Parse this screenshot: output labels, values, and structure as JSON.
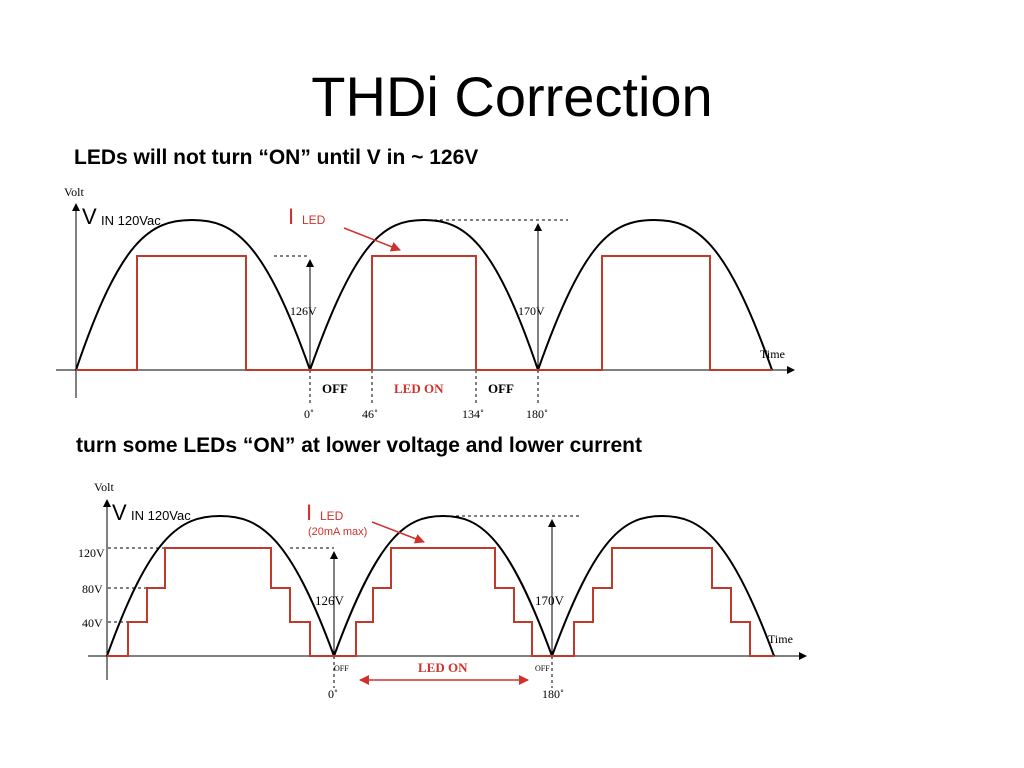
{
  "slide": {
    "title": "THDi Correction",
    "caption_top": "LEDs will not turn “ON” until V in ~ 126V",
    "caption_bottom": "turn some LEDs “ON” at lower voltage and lower current"
  },
  "diagram_top": {
    "y_axis_label": "Volt",
    "x_axis_label": "Time",
    "vin_symbol": "V",
    "vin_label": "IN 120Vac",
    "iled_symbol": "I",
    "iled_label": "LED",
    "threshold_label": "126V",
    "peak_label": "170V",
    "off_left": "OFF",
    "led_on": "LED ON",
    "off_right": "OFF",
    "angle_0": "0˚",
    "angle_46": "46˚",
    "angle_134": "134˚",
    "angle_180": "180˚"
  },
  "diagram_bottom": {
    "y_axis_label": "Volt",
    "x_axis_label": "Time",
    "vin_symbol": "V",
    "vin_label": "IN 120Vac",
    "iled_symbol": "I",
    "iled_label": "LED",
    "iled_max": "(20mA max)",
    "level_120": "120V",
    "level_80": "80V",
    "level_40": "40V",
    "threshold_label": "126V",
    "peak_label": "170V",
    "off_left": "OFF",
    "led_on": "LED ON",
    "off_right": "OFF",
    "angle_0": "0˚",
    "angle_180": "180˚"
  },
  "colors": {
    "wave": "#000000",
    "current": "#c0392b",
    "label_red": "#d0312d"
  }
}
